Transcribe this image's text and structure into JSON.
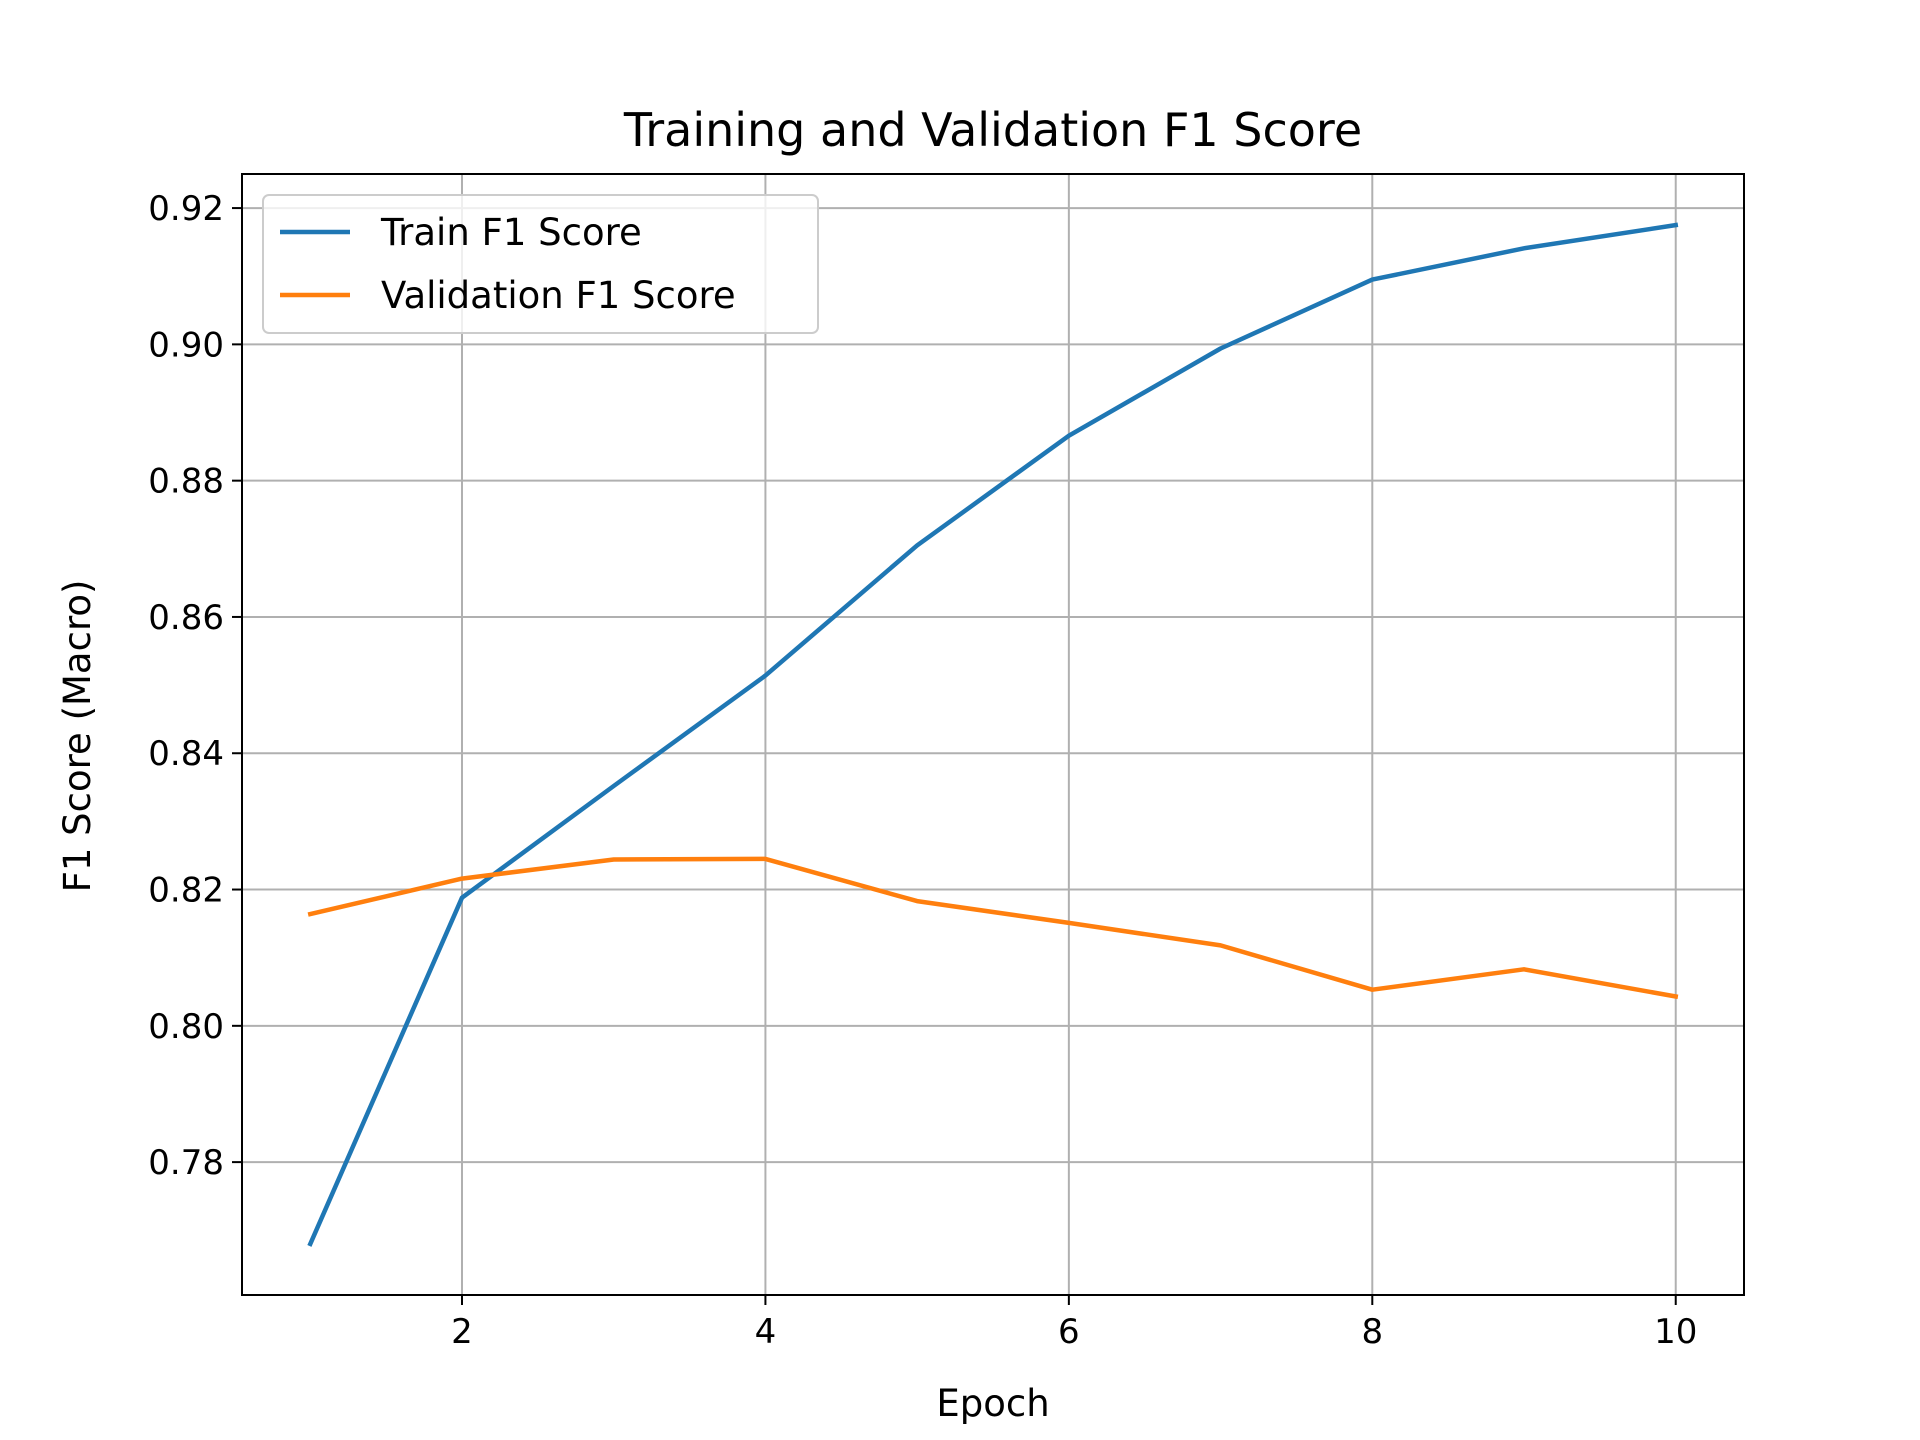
{
  "chart_data": {
    "type": "line",
    "title": "Training and Validation F1 Score",
    "xlabel": "Epoch",
    "ylabel": "F1 Score (Macro)",
    "x": [
      1,
      2,
      3,
      4,
      5,
      6,
      7,
      8,
      9,
      10
    ],
    "xlim": [
      0.55,
      10.45
    ],
    "ylim": [
      0.7605,
      0.925
    ],
    "xticks": [
      2,
      4,
      6,
      8,
      10
    ],
    "yticks": [
      0.78,
      0.8,
      0.82,
      0.84,
      0.86,
      0.88,
      0.9,
      0.92
    ],
    "grid": true,
    "legend_position": "upper-left",
    "series": [
      {
        "name": "Train F1 Score",
        "color": "#1f77b4",
        "values": [
          0.768,
          0.8188,
          0.8352,
          0.8514,
          0.8705,
          0.8866,
          0.8994,
          0.9095,
          0.9141,
          0.9175
        ]
      },
      {
        "name": "Validation F1 Score",
        "color": "#ff7f0e",
        "values": [
          0.8164,
          0.8216,
          0.8244,
          0.8245,
          0.8183,
          0.8151,
          0.8118,
          0.8053,
          0.8083,
          0.8043
        ]
      }
    ]
  }
}
